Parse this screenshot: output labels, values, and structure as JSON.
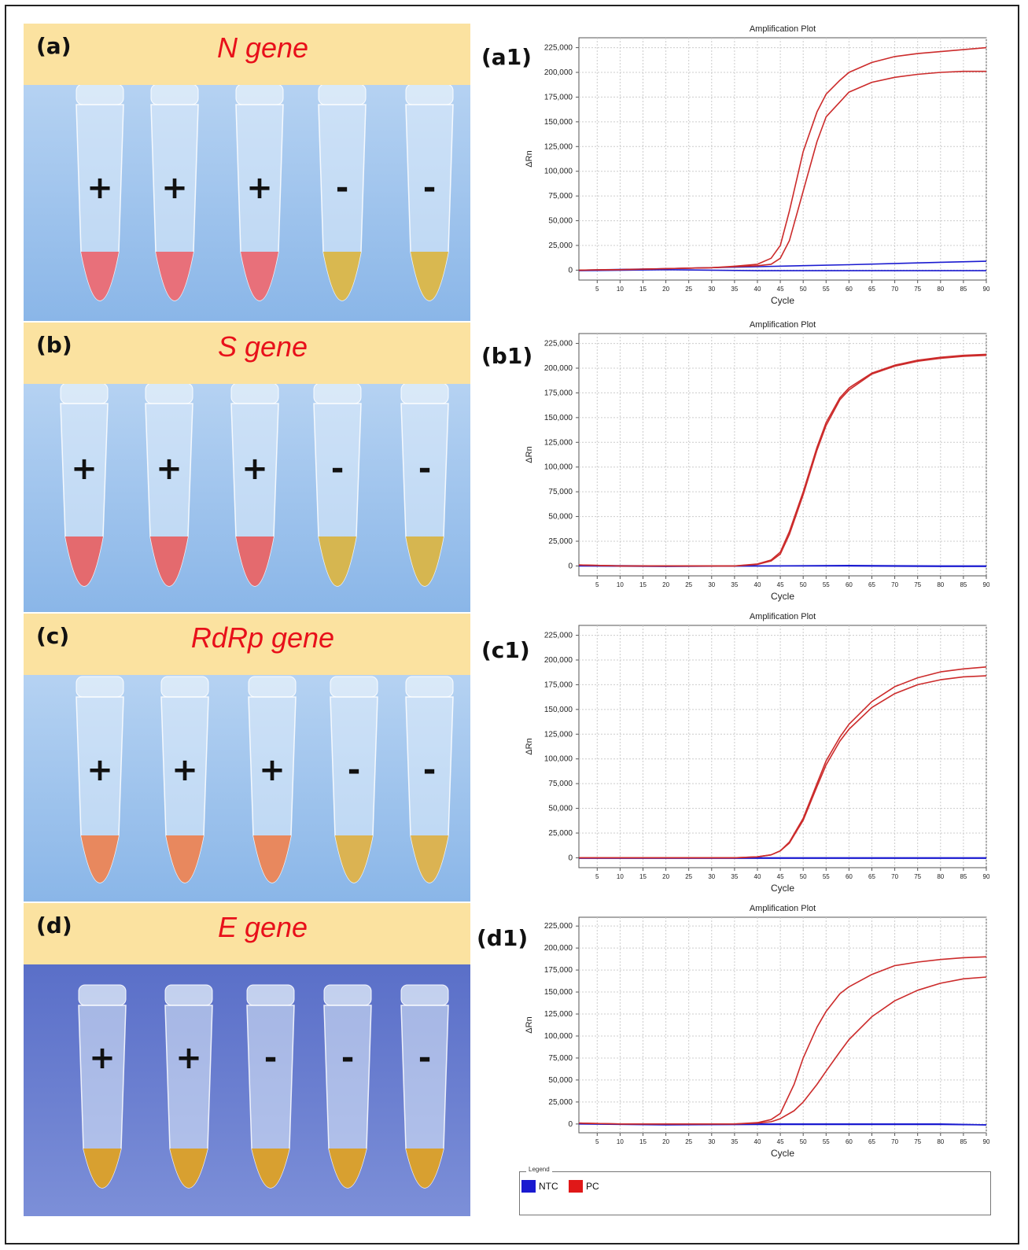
{
  "panels": [
    {
      "id": "a",
      "label": "(a)",
      "gene": "N gene",
      "signs": [
        "+",
        "+",
        "+",
        "-",
        "-"
      ],
      "liquid": [
        "#e8707a",
        "#e8707a",
        "#e8707a",
        "#d9b850",
        "#d9b850"
      ]
    },
    {
      "id": "b",
      "label": "(b)",
      "gene": "S gene",
      "signs": [
        "+",
        "+",
        "+",
        "-",
        "-"
      ],
      "liquid": [
        "#e46a6e",
        "#e46a6e",
        "#e46a6e",
        "#d6b650",
        "#d6b650"
      ]
    },
    {
      "id": "c",
      "label": "(c)",
      "gene": "RdRp gene",
      "signs": [
        "+",
        "+",
        "+",
        "-",
        "-"
      ],
      "liquid": [
        "#e8885e",
        "#e8885e",
        "#e8885e",
        "#dbb352",
        "#dbb352"
      ]
    },
    {
      "id": "d",
      "label": "(d)",
      "gene": "E gene",
      "signs": [
        "+",
        "+",
        "-",
        "-",
        "-"
      ],
      "liquid": [
        "#d8a030",
        "#d8a030",
        "#d8a030",
        "#d8a030",
        "#d8a030"
      ]
    }
  ],
  "colors": {
    "pc": "#cc2b2b",
    "ntc": "#1a1ad0",
    "header_bg": "#fbe2a0",
    "gene_text": "#e8101a"
  },
  "chart_data": [
    {
      "label": "(a1)",
      "type": "line",
      "title": "Amplification Plot",
      "xlabel": "Cycle",
      "ylabel": "ΔRn",
      "xlim": [
        1,
        90
      ],
      "ylim": [
        -10000,
        235000
      ],
      "grid": true,
      "x_ticks": [
        5,
        10,
        15,
        20,
        25,
        30,
        35,
        40,
        45,
        50,
        55,
        60,
        65,
        70,
        75,
        80,
        85,
        90
      ],
      "y_ticks": [
        0,
        25000,
        50000,
        75000,
        100000,
        125000,
        150000,
        175000,
        200000,
        225000
      ],
      "y_tick_labels": [
        "0",
        "25,000",
        "50,000",
        "75,000",
        "100,000",
        "125,000",
        "150,000",
        "175,000",
        "200,000",
        "225,000"
      ],
      "series": [
        {
          "name": "PC",
          "color": "#cc2b2b",
          "x": [
            1,
            10,
            20,
            30,
            35,
            40,
            43,
            45,
            47,
            50,
            53,
            55,
            58,
            60,
            65,
            70,
            75,
            80,
            85,
            90
          ],
          "values": [
            0,
            500,
            1500,
            2500,
            4000,
            6000,
            12000,
            25000,
            60000,
            120000,
            160000,
            178000,
            192000,
            200000,
            210000,
            216000,
            219000,
            221000,
            223000,
            225000
          ]
        },
        {
          "name": "PC",
          "color": "#cc2b2b",
          "x": [
            1,
            10,
            20,
            30,
            35,
            40,
            43,
            45,
            47,
            50,
            53,
            55,
            58,
            60,
            65,
            70,
            75,
            80,
            85,
            90
          ],
          "values": [
            0,
            500,
            1500,
            2500,
            3500,
            4500,
            6000,
            12000,
            30000,
            80000,
            130000,
            155000,
            170000,
            180000,
            190000,
            195000,
            198000,
            200000,
            201000,
            201000
          ]
        },
        {
          "name": "NTC",
          "color": "#1a1ad0",
          "x": [
            1,
            20,
            40,
            60,
            80,
            90
          ],
          "values": [
            0,
            1500,
            3500,
            5500,
            8000,
            9000
          ]
        },
        {
          "name": "NTC",
          "color": "#1a1ad0",
          "x": [
            1,
            20,
            40,
            60,
            80,
            90
          ],
          "values": [
            -500,
            500,
            -500,
            -500,
            -500,
            -500
          ]
        }
      ]
    },
    {
      "label": "(b1)",
      "type": "line",
      "title": "Amplification Plot",
      "xlabel": "Cycle",
      "ylabel": "ΔRn",
      "xlim": [
        1,
        90
      ],
      "ylim": [
        -10000,
        235000
      ],
      "grid": true,
      "x_ticks": [
        5,
        10,
        15,
        20,
        25,
        30,
        35,
        40,
        45,
        50,
        55,
        60,
        65,
        70,
        75,
        80,
        85,
        90
      ],
      "y_ticks": [
        0,
        25000,
        50000,
        75000,
        100000,
        125000,
        150000,
        175000,
        200000,
        225000
      ],
      "y_tick_labels": [
        "0",
        "25,000",
        "50,000",
        "75,000",
        "100,000",
        "125,000",
        "150,000",
        "175,000",
        "200,000",
        "225,000"
      ],
      "series": [
        {
          "name": "PC",
          "color": "#cc2b2b",
          "x": [
            1,
            10,
            20,
            30,
            35,
            40,
            43,
            45,
            47,
            50,
            53,
            55,
            58,
            60,
            65,
            70,
            75,
            80,
            85,
            90
          ],
          "values": [
            1000,
            0,
            0,
            0,
            0,
            2000,
            6000,
            14000,
            35000,
            75000,
            120000,
            145000,
            170000,
            180000,
            195000,
            203000,
            208000,
            211000,
            213000,
            214000
          ]
        },
        {
          "name": "PC",
          "color": "#cc2b2b",
          "x": [
            1,
            10,
            20,
            30,
            35,
            40,
            43,
            45,
            47,
            50,
            53,
            55,
            58,
            60,
            65,
            70,
            75,
            80,
            85,
            90
          ],
          "values": [
            1000,
            0,
            0,
            0,
            0,
            1500,
            5000,
            12000,
            32000,
            72000,
            117000,
            142000,
            168000,
            178000,
            194000,
            202000,
            207000,
            210000,
            212000,
            213000
          ]
        },
        {
          "name": "NTC",
          "color": "#1a1ad0",
          "x": [
            1,
            20,
            40,
            60,
            80,
            90
          ],
          "values": [
            500,
            0,
            0,
            500,
            0,
            0
          ]
        },
        {
          "name": "NTC",
          "color": "#1a1ad0",
          "x": [
            1,
            20,
            40,
            60,
            80,
            90
          ],
          "values": [
            0,
            -500,
            0,
            0,
            -500,
            -500
          ]
        }
      ]
    },
    {
      "label": "(c1)",
      "type": "line",
      "title": "Amplification Plot",
      "xlabel": "Cycle",
      "ylabel": "ΔRn",
      "xlim": [
        1,
        90
      ],
      "ylim": [
        -10000,
        235000
      ],
      "grid": true,
      "x_ticks": [
        5,
        10,
        15,
        20,
        25,
        30,
        35,
        40,
        45,
        50,
        55,
        60,
        65,
        70,
        75,
        80,
        85,
        90
      ],
      "y_ticks": [
        0,
        25000,
        50000,
        75000,
        100000,
        125000,
        150000,
        175000,
        200000,
        225000
      ],
      "y_tick_labels": [
        "0",
        "25,000",
        "50,000",
        "75,000",
        "100,000",
        "125,000",
        "150,000",
        "175,000",
        "200,000",
        "225,000"
      ],
      "series": [
        {
          "name": "PC",
          "color": "#cc2b2b",
          "x": [
            1,
            10,
            20,
            30,
            35,
            40,
            43,
            45,
            47,
            50,
            53,
            55,
            58,
            60,
            65,
            70,
            75,
            80,
            85,
            90
          ],
          "values": [
            0,
            0,
            0,
            0,
            0,
            1000,
            3000,
            7000,
            16000,
            40000,
            75000,
            98000,
            122000,
            135000,
            158000,
            173000,
            182000,
            188000,
            191000,
            193000
          ]
        },
        {
          "name": "PC",
          "color": "#cc2b2b",
          "x": [
            1,
            10,
            20,
            30,
            35,
            40,
            43,
            45,
            47,
            50,
            53,
            55,
            58,
            60,
            65,
            70,
            75,
            80,
            85,
            90
          ],
          "values": [
            0,
            0,
            0,
            0,
            0,
            1000,
            3000,
            7000,
            15000,
            38000,
            72000,
            94000,
            118000,
            130000,
            152000,
            166000,
            175000,
            180000,
            183000,
            184000
          ]
        },
        {
          "name": "NTC",
          "color": "#1a1ad0",
          "x": [
            1,
            20,
            40,
            60,
            80,
            90
          ],
          "values": [
            0,
            0,
            0,
            0,
            0,
            0
          ]
        },
        {
          "name": "NTC",
          "color": "#1a1ad0",
          "x": [
            1,
            20,
            40,
            60,
            80,
            90
          ],
          "values": [
            -500,
            -500,
            -500,
            -500,
            -500,
            -500
          ]
        }
      ]
    },
    {
      "label": "(d1)",
      "type": "line",
      "title": "Amplification Plot",
      "xlabel": "Cycle",
      "ylabel": "ΔRn",
      "xlim": [
        1,
        90
      ],
      "ylim": [
        -10000,
        235000
      ],
      "grid": true,
      "x_ticks": [
        5,
        10,
        15,
        20,
        25,
        30,
        35,
        40,
        45,
        50,
        55,
        60,
        65,
        70,
        75,
        80,
        85,
        90
      ],
      "y_ticks": [
        0,
        25000,
        50000,
        75000,
        100000,
        125000,
        150000,
        175000,
        200000,
        225000
      ],
      "y_tick_labels": [
        "0",
        "25,000",
        "50,000",
        "75,000",
        "100,000",
        "125,000",
        "150,000",
        "175,000",
        "200,000",
        "225,000"
      ],
      "series": [
        {
          "name": "PC",
          "color": "#cc2b2b",
          "x": [
            1,
            10,
            20,
            30,
            35,
            40,
            43,
            45,
            48,
            50,
            53,
            55,
            58,
            60,
            65,
            70,
            75,
            80,
            85,
            90
          ],
          "values": [
            1000,
            0,
            0,
            0,
            0,
            1500,
            5000,
            12000,
            45000,
            75000,
            110000,
            128000,
            148000,
            156000,
            170000,
            180000,
            184000,
            187000,
            189000,
            190000
          ]
        },
        {
          "name": "PC",
          "color": "#cc2b2b",
          "x": [
            1,
            10,
            20,
            30,
            35,
            40,
            43,
            45,
            48,
            50,
            53,
            55,
            58,
            60,
            65,
            70,
            75,
            80,
            85,
            90
          ],
          "values": [
            1000,
            0,
            0,
            0,
            0,
            1000,
            2500,
            6000,
            15000,
            25000,
            45000,
            60000,
            82000,
            96000,
            122000,
            140000,
            152000,
            160000,
            165000,
            167000
          ]
        },
        {
          "name": "NTC",
          "color": "#1a1ad0",
          "x": [
            1,
            20,
            40,
            60,
            80,
            90
          ],
          "values": [
            500,
            -500,
            0,
            0,
            0,
            -1000
          ]
        },
        {
          "name": "NTC",
          "color": "#1a1ad0",
          "x": [
            1,
            20,
            40,
            60,
            80,
            90
          ],
          "values": [
            0,
            -1000,
            -500,
            -500,
            -500,
            -1000
          ]
        }
      ]
    }
  ],
  "legend": {
    "title": "Legend",
    "items": [
      {
        "label": "NTC",
        "color": "#1a1ad0"
      },
      {
        "label": "PC",
        "color": "#cc2b2b"
      }
    ]
  }
}
